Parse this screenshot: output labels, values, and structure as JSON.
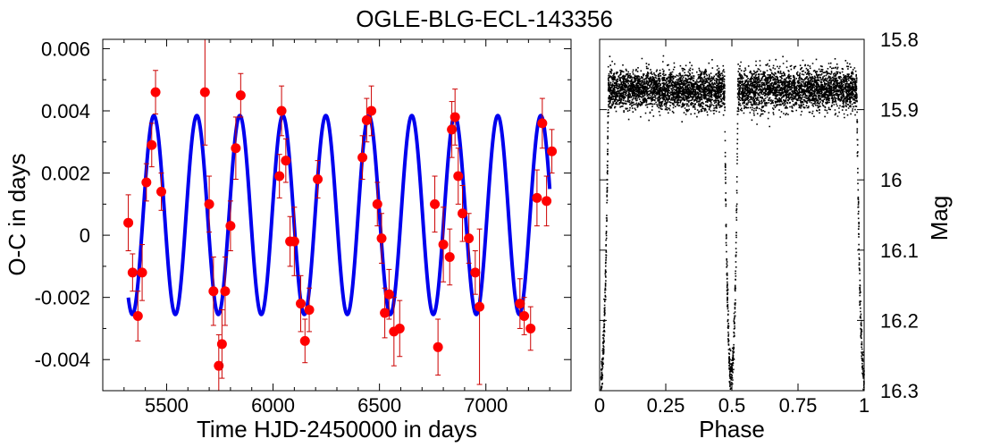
{
  "title": "OGLE-BLG-ECL-143356",
  "colors": {
    "points": "#ff0000",
    "errorbars": "#cc0000",
    "model": "#0000ee",
    "lightcurve": "#000000"
  },
  "chart_data": [
    {
      "type": "scatter",
      "xlabel": "Time HJD-2450000 in days",
      "ylabel": "O-C in days",
      "xlim": [
        5200,
        7400
      ],
      "ylim": [
        -0.005,
        0.0063
      ],
      "xticks": [
        "5500",
        "6000",
        "6500",
        "7000"
      ],
      "yticks": [
        "-0.004",
        "-0.002",
        "0",
        "0.002",
        "0.004",
        "0.006"
      ],
      "ytick_values": [
        -0.004,
        -0.002,
        0,
        0.002,
        0.004,
        0.006
      ],
      "xtick_values": [
        5500,
        6000,
        6500,
        7000
      ],
      "model": {
        "name": "model",
        "period_days": 202,
        "amplitude": 0.0032,
        "offset": 0.00065,
        "peak_x": 5440,
        "x_range": [
          5320,
          7300
        ]
      },
      "series": [
        {
          "name": "data",
          "points": [
            {
              "x": 5320,
              "y": 0.0004,
              "err": 0.0009
            },
            {
              "x": 5340,
              "y": -0.0012,
              "err": 0.0006
            },
            {
              "x": 5365,
              "y": -0.0026,
              "err": 0.0008
            },
            {
              "x": 5385,
              "y": -0.0012,
              "err": 0.0009
            },
            {
              "x": 5405,
              "y": 0.0017,
              "err": 0.0006
            },
            {
              "x": 5430,
              "y": 0.0029,
              "err": 0.0007
            },
            {
              "x": 5448,
              "y": 0.0046,
              "err": 0.0007
            },
            {
              "x": 5475,
              "y": 0.0014,
              "err": 0.0006
            },
            {
              "x": 5680,
              "y": 0.0046,
              "err": 0.0017
            },
            {
              "x": 5700,
              "y": 0.001,
              "err": 0.0009
            },
            {
              "x": 5720,
              "y": -0.0018,
              "err": 0.0011
            },
            {
              "x": 5745,
              "y": -0.0042,
              "err": 0.001
            },
            {
              "x": 5760,
              "y": -0.0035,
              "err": 0.0011
            },
            {
              "x": 5775,
              "y": -0.0018,
              "err": 0.0011
            },
            {
              "x": 5800,
              "y": 0.0003,
              "err": 0.0008
            },
            {
              "x": 5825,
              "y": 0.0028,
              "err": 0.001
            },
            {
              "x": 5848,
              "y": 0.0045,
              "err": 0.0007
            },
            {
              "x": 6030,
              "y": 0.0019,
              "err": 0.0007
            },
            {
              "x": 6040,
              "y": 0.004,
              "err": 0.0008
            },
            {
              "x": 6060,
              "y": 0.0024,
              "err": 0.0007
            },
            {
              "x": 6080,
              "y": -0.0002,
              "err": 0.0008
            },
            {
              "x": 6100,
              "y": -0.0002,
              "err": 0.0011
            },
            {
              "x": 6130,
              "y": -0.0022,
              "err": 0.0009
            },
            {
              "x": 6150,
              "y": -0.0034,
              "err": 0.0007
            },
            {
              "x": 6170,
              "y": -0.0024,
              "err": 0.0007
            },
            {
              "x": 6210,
              "y": 0.0018,
              "err": 0.0006
            },
            {
              "x": 6420,
              "y": 0.0025,
              "err": 0.0007
            },
            {
              "x": 6440,
              "y": 0.0037,
              "err": 0.0007
            },
            {
              "x": 6462,
              "y": 0.004,
              "err": 0.0008
            },
            {
              "x": 6490,
              "y": 0.001,
              "err": 0.0007
            },
            {
              "x": 6510,
              "y": -0.0001,
              "err": 0.0008
            },
            {
              "x": 6525,
              "y": -0.0025,
              "err": 0.0008
            },
            {
              "x": 6545,
              "y": -0.0019,
              "err": 0.0008
            },
            {
              "x": 6568,
              "y": -0.0031,
              "err": 0.0011
            },
            {
              "x": 6595,
              "y": -0.003,
              "err": 0.0009
            },
            {
              "x": 6760,
              "y": 0.001,
              "err": 0.0009
            },
            {
              "x": 6775,
              "y": -0.0036,
              "err": 0.0009
            },
            {
              "x": 6800,
              "y": -0.0003,
              "err": 0.0012
            },
            {
              "x": 6830,
              "y": -0.0007,
              "err": 0.0009
            },
            {
              "x": 6840,
              "y": 0.0034,
              "err": 0.0009
            },
            {
              "x": 6855,
              "y": 0.0038,
              "err": 0.0009
            },
            {
              "x": 6870,
              "y": 0.0019,
              "err": 0.0009
            },
            {
              "x": 6890,
              "y": 0.0007,
              "err": 0.0009
            },
            {
              "x": 6920,
              "y": -0.0001,
              "err": 0.0008
            },
            {
              "x": 6950,
              "y": -0.0012,
              "err": 0.0007
            },
            {
              "x": 6970,
              "y": -0.0023,
              "err": 0.0025
            },
            {
              "x": 7160,
              "y": -0.0022,
              "err": 0.0008
            },
            {
              "x": 7180,
              "y": -0.0026,
              "err": 0.0006
            },
            {
              "x": 7210,
              "y": -0.003,
              "err": 0.0007
            },
            {
              "x": 7240,
              "y": 0.0012,
              "err": 0.0009
            },
            {
              "x": 7265,
              "y": 0.0036,
              "err": 0.0008
            },
            {
              "x": 7285,
              "y": 0.0011,
              "err": 0.0008
            },
            {
              "x": 7310,
              "y": 0.0027,
              "err": 0.0007
            }
          ]
        }
      ]
    },
    {
      "type": "scatter",
      "xlabel": "Phase",
      "ylabel": "Mag",
      "xlim": [
        0,
        1
      ],
      "ylim": [
        16.3,
        15.8
      ],
      "y_inverted": true,
      "xticks": [
        "0",
        "0.25",
        "0.5",
        "0.75",
        "1"
      ],
      "xtick_values": [
        0,
        0.25,
        0.5,
        0.75,
        1
      ],
      "yticks": [
        "15.8",
        "15.9",
        "16",
        "16.1",
        "16.2",
        "16.3"
      ],
      "ytick_values": [
        15.8,
        15.9,
        16,
        16.1,
        16.2,
        16.3
      ],
      "light_curve": {
        "name": "light curve",
        "out_of_eclipse_mag": 15.87,
        "scatter_mag": 0.014,
        "primary_eclipse": {
          "center": 0.0,
          "half_width": 0.03,
          "depth_mag": 16.29
        },
        "secondary_eclipse": {
          "center": 0.495,
          "half_width": 0.025,
          "depth_mag": 16.28
        },
        "n_points": 6000
      }
    }
  ]
}
